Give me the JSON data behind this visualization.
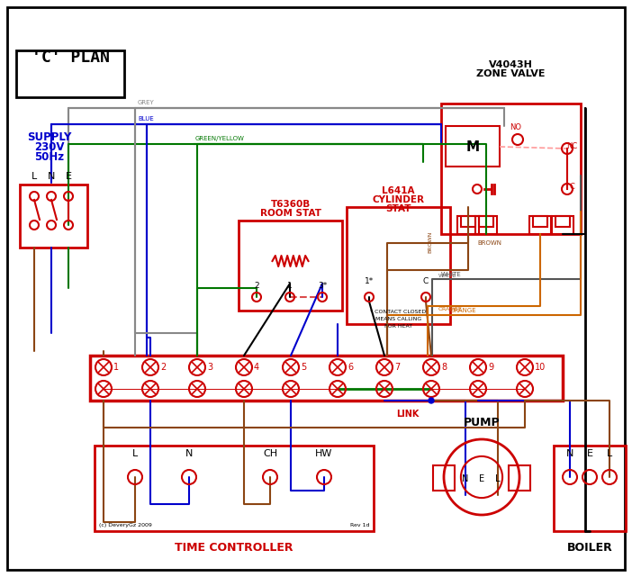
{
  "title": "'C' PLAN",
  "bg_color": "#ffffff",
  "border_color": "#000000",
  "red": "#cc0000",
  "blue": "#0000cc",
  "green": "#007700",
  "brown": "#8B4513",
  "grey": "#888888",
  "orange": "#cc6600",
  "black": "#000000",
  "white_wire": "#888888",
  "supply_text": "SUPPLY\n230V\n50Hz",
  "supply_labels": [
    "L",
    "N",
    "E"
  ],
  "zone_valve_title": "V4043H\nZONE VALVE",
  "room_stat_title": "T6360B\nROOM STAT",
  "cyl_stat_title": "L641A\nCYLINDER\nSTAT",
  "time_controller_title": "TIME CONTROLLER",
  "pump_title": "PUMP",
  "boiler_title": "BOILER",
  "terminal_labels": [
    "1",
    "2",
    "3",
    "4",
    "5",
    "6",
    "7",
    "8",
    "9",
    "10"
  ],
  "tc_labels": [
    "L",
    "N",
    "CH",
    "HW"
  ],
  "nel_labels": [
    "N",
    "E",
    "L"
  ]
}
